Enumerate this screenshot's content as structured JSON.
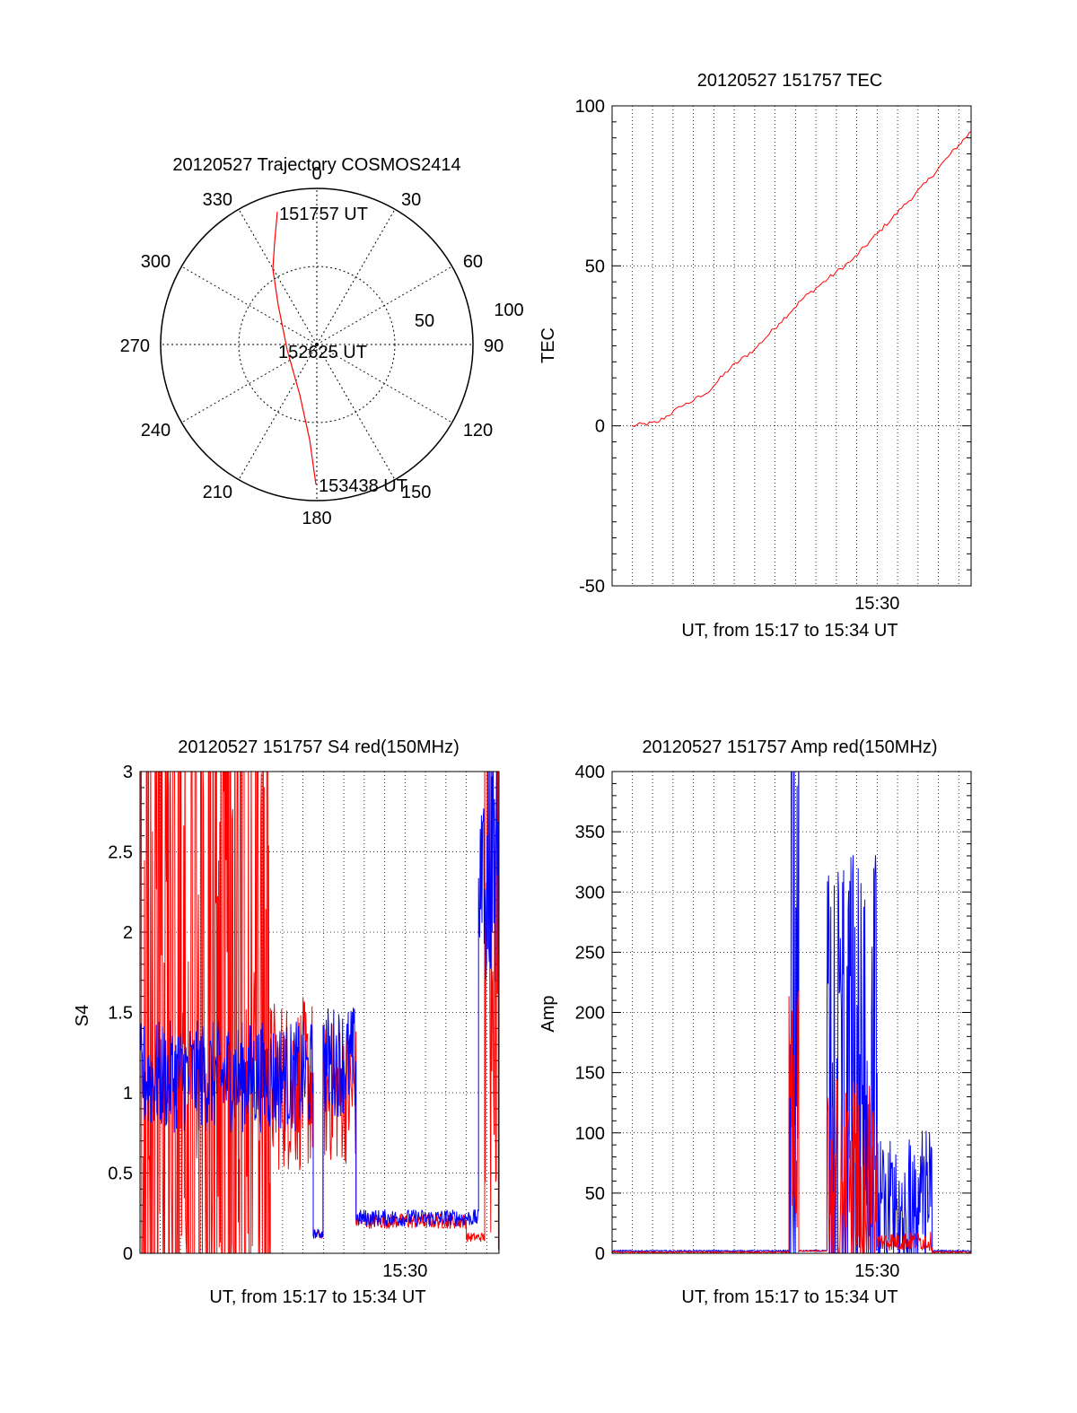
{
  "colors": {
    "red": "#ff0000",
    "blue": "#0000ff",
    "axis": "#000000",
    "grid": "#000000"
  },
  "chart_data": [
    {
      "id": "polar",
      "type": "polar-trajectory",
      "title": "20120527 Trajectory COSMOS2414",
      "angle_labels": [
        "0",
        "30",
        "60",
        "90",
        "120",
        "150",
        "180",
        "210",
        "240",
        "270",
        "300",
        "330"
      ],
      "radius_labels": [
        "50",
        "100"
      ],
      "annotations": [
        "151757 UT",
        "152625 UT",
        "153438 UT"
      ],
      "trajectory": {
        "color": "red",
        "points": [
          [
            345,
            76
          ],
          [
            340,
            64
          ],
          [
            330,
            44
          ],
          [
            290,
            10
          ],
          [
            215,
            36
          ],
          [
            200,
            56
          ],
          [
            195,
            73
          ],
          [
            194,
            88
          ]
        ]
      },
      "grid": true
    },
    {
      "id": "tec",
      "type": "line",
      "title": "20120527 151757 TEC",
      "xlabel": "UT, from 15:17 to 15:34 UT",
      "ylabel": "TEC",
      "xlim": [
        15.2836,
        15.5767
      ],
      "ylim": [
        -50,
        100
      ],
      "yticks": [
        "-50",
        "0",
        "50",
        "100"
      ],
      "xticks": [
        {
          "value": 15.5,
          "label": "15:30"
        }
      ],
      "grid": true,
      "series": [
        {
          "color": "red",
          "x": [
            15.3,
            15.32,
            15.34,
            15.36,
            15.38,
            15.4,
            15.42,
            15.44,
            15.46,
            15.48,
            15.5,
            15.52,
            15.54,
            15.56,
            15.5767
          ],
          "y": [
            0,
            1,
            6,
            10,
            18,
            24,
            32,
            40,
            46,
            52,
            60,
            68,
            76,
            85,
            92
          ]
        }
      ]
    },
    {
      "id": "s4",
      "type": "line",
      "title": "20120527 151757 S4 red(150MHz)",
      "xlabel": "UT, from 15:17 to 15:34 UT",
      "ylabel": "S4",
      "xlim": [
        15.2836,
        15.5767
      ],
      "ylim": [
        0,
        3
      ],
      "yticks": [
        "0",
        "0.5",
        "1",
        "1.5",
        "2",
        "2.5",
        "3"
      ],
      "xticks": [
        {
          "value": 15.5,
          "label": "15:30"
        }
      ],
      "grid": true,
      "series": [
        {
          "color": "red",
          "segments": [
            {
              "x0": 15.2836,
              "x1": 15.39,
              "mean": 1.1,
              "amp": 1.9,
              "noise": "spiky"
            },
            {
              "x0": 15.39,
              "x1": 15.425,
              "mean": 1.05,
              "amp": 0.55,
              "noise": "medium"
            },
            {
              "x0": 15.425,
              "x1": 15.433,
              "mean": 0.12,
              "amp": 0.05,
              "noise": "low"
            },
            {
              "x0": 15.433,
              "x1": 15.46,
              "mean": 1.0,
              "amp": 0.45,
              "noise": "medium"
            },
            {
              "x0": 15.46,
              "x1": 15.55,
              "mean": 0.2,
              "amp": 0.08,
              "noise": "low"
            },
            {
              "x0": 15.55,
              "x1": 15.565,
              "mean": 0.1,
              "amp": 0.05,
              "noise": "low"
            },
            {
              "x0": 15.565,
              "x1": 15.5767,
              "mean": 2.0,
              "amp": 1.0,
              "noise": "spiky"
            }
          ]
        },
        {
          "color": "blue",
          "segments": [
            {
              "x0": 15.2836,
              "x1": 15.425,
              "mean": 1.1,
              "amp": 0.35,
              "noise": "medium"
            },
            {
              "x0": 15.425,
              "x1": 15.433,
              "mean": 0.12,
              "amp": 0.05,
              "noise": "low"
            },
            {
              "x0": 15.433,
              "x1": 15.46,
              "mean": 1.2,
              "amp": 0.35,
              "noise": "medium"
            },
            {
              "x0": 15.46,
              "x1": 15.56,
              "mean": 0.22,
              "amp": 0.09,
              "noise": "low"
            },
            {
              "x0": 15.56,
              "x1": 15.5767,
              "mean": 2.6,
              "amp": 0.5,
              "noise": "spiky"
            }
          ]
        }
      ]
    },
    {
      "id": "amp",
      "type": "line",
      "title": "20120527 151757 Amp red(150MHz)",
      "xlabel": "UT, from 15:17 to 15:34 UT",
      "ylabel": "Amp",
      "xlim": [
        15.2836,
        15.5767
      ],
      "ylim": [
        0,
        400
      ],
      "yticks": [
        "0",
        "50",
        "100",
        "150",
        "200",
        "250",
        "300",
        "350",
        "400"
      ],
      "xticks": [
        {
          "value": 15.5,
          "label": "15:30"
        }
      ],
      "grid": true,
      "series": [
        {
          "color": "blue",
          "segments": [
            {
              "x0": 15.2836,
              "x1": 15.428,
              "mean": 2,
              "amp": 1,
              "noise": "low"
            },
            {
              "x0": 15.428,
              "x1": 15.436,
              "mean": 220,
              "amp": 170,
              "noise": "spiky"
            },
            {
              "x0": 15.436,
              "x1": 15.459,
              "mean": 2,
              "amp": 1,
              "noise": "low"
            },
            {
              "x0": 15.459,
              "x1": 15.5,
              "mean": 120,
              "amp": 110,
              "noise": "spiky"
            },
            {
              "x0": 15.5,
              "x1": 15.535,
              "mean": 35,
              "amp": 30,
              "noise": "spiky"
            },
            {
              "x0": 15.535,
              "x1": 15.545,
              "mean": 45,
              "amp": 30,
              "noise": "spiky"
            },
            {
              "x0": 15.545,
              "x1": 15.5767,
              "mean": 2,
              "amp": 1,
              "noise": "low"
            }
          ]
        },
        {
          "color": "red",
          "segments": [
            {
              "x0": 15.2836,
              "x1": 15.428,
              "mean": 1,
              "amp": 1,
              "noise": "low"
            },
            {
              "x0": 15.428,
              "x1": 15.436,
              "mean": 120,
              "amp": 50,
              "noise": "spiky"
            },
            {
              "x0": 15.436,
              "x1": 15.459,
              "mean": 2,
              "amp": 1,
              "noise": "low"
            },
            {
              "x0": 15.459,
              "x1": 15.5,
              "mean": 55,
              "amp": 45,
              "noise": "spiky"
            },
            {
              "x0": 15.5,
              "x1": 15.545,
              "mean": 10,
              "amp": 8,
              "noise": "medium"
            },
            {
              "x0": 15.545,
              "x1": 15.5767,
              "mean": 1,
              "amp": 1,
              "noise": "low"
            }
          ]
        }
      ]
    }
  ]
}
